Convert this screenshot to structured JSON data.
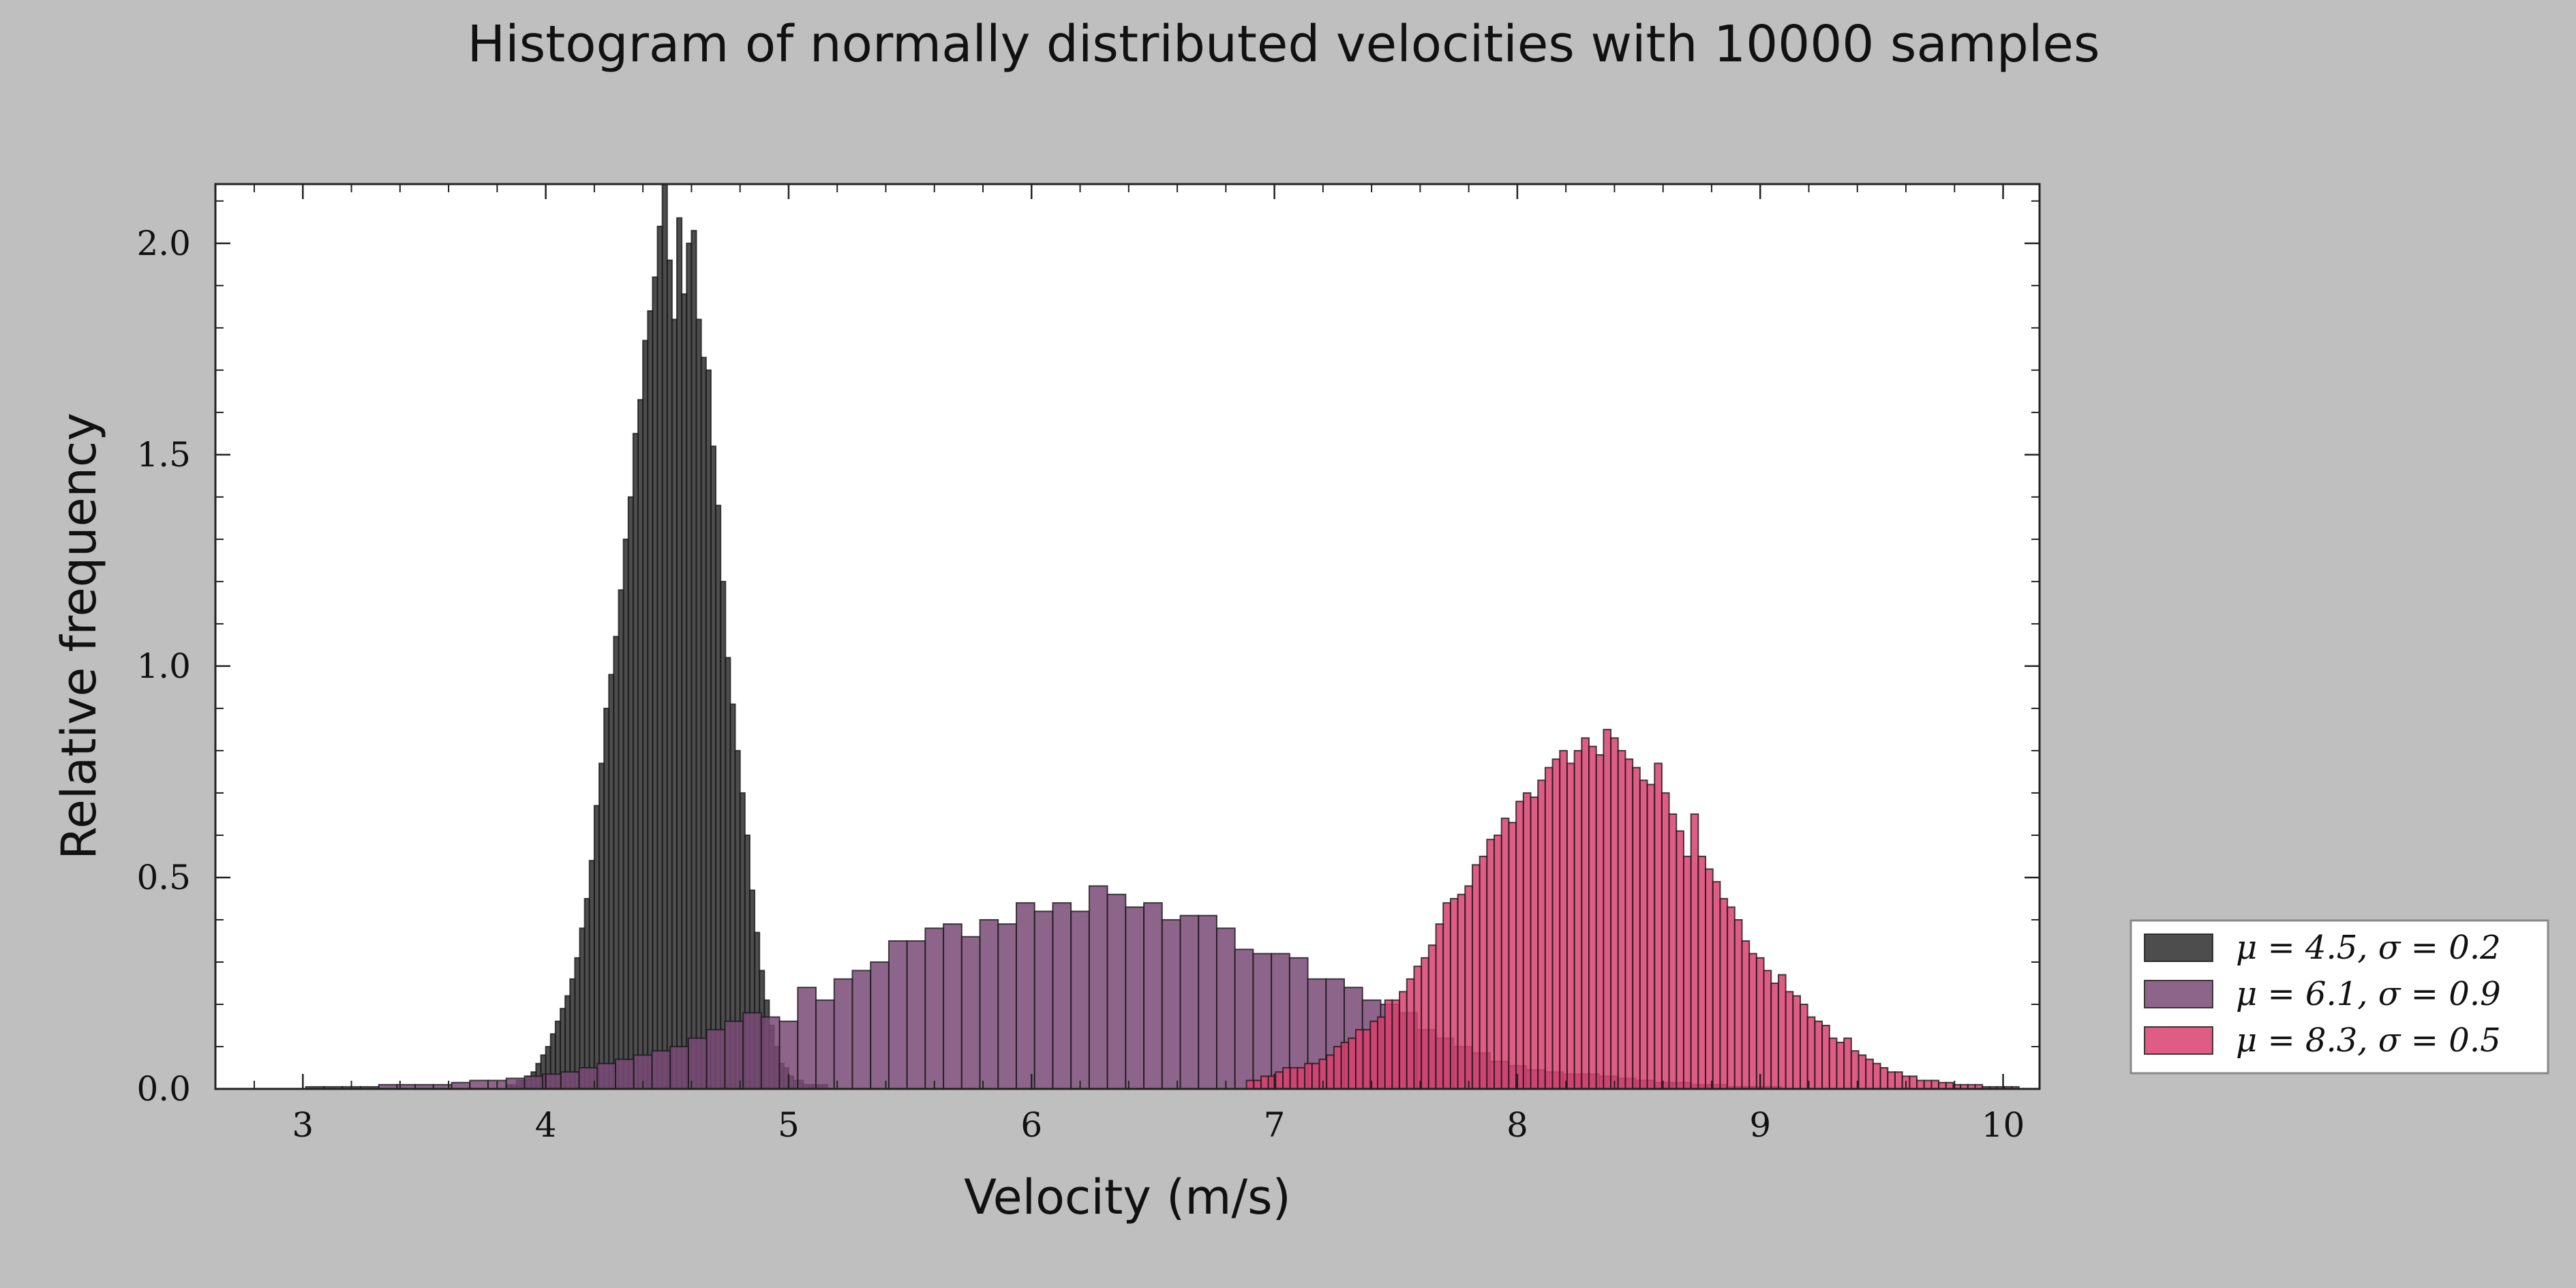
{
  "chart_data": {
    "type": "bar",
    "title": "Histogram of normally distributed velocities with 10000 samples",
    "xlabel": "Velocity (m/s)",
    "ylabel": "Relative frequency",
    "xlim": [
      2.64,
      10.15
    ],
    "ylim": [
      0,
      2.14
    ],
    "xticks": [
      3,
      4,
      5,
      6,
      7,
      8,
      9,
      10
    ],
    "yticks": [
      0.0,
      0.5,
      1.0,
      1.5,
      2.0
    ],
    "ytick_labels": [
      "0.0",
      "0.5",
      "1.0",
      "1.5",
      "2.0"
    ],
    "grid": false,
    "legend_position": "outside-lower-right",
    "series": [
      {
        "name": "μ = 4.5, σ = 0.2",
        "color": "#2e2e2e",
        "x": [
          3.85,
          3.87,
          3.89,
          3.91,
          3.93,
          3.95,
          3.97,
          3.99,
          4.01,
          4.03,
          4.05,
          4.07,
          4.09,
          4.11,
          4.13,
          4.15,
          4.17,
          4.19,
          4.21,
          4.23,
          4.25,
          4.27,
          4.29,
          4.31,
          4.33,
          4.35,
          4.37,
          4.39,
          4.41,
          4.43,
          4.45,
          4.47,
          4.49,
          4.51,
          4.53,
          4.55,
          4.57,
          4.59,
          4.61,
          4.63,
          4.65,
          4.67,
          4.69,
          4.71,
          4.73,
          4.75,
          4.77,
          4.79,
          4.81,
          4.83,
          4.85,
          4.87,
          4.89,
          4.91,
          4.93,
          4.95,
          4.97,
          4.99,
          5.01,
          5.03,
          5.05,
          5.07,
          5.09,
          5.11,
          5.13,
          5.15
        ],
        "y": [
          0.01,
          0.01,
          0.02,
          0.02,
          0.03,
          0.04,
          0.06,
          0.08,
          0.1,
          0.13,
          0.16,
          0.19,
          0.22,
          0.26,
          0.31,
          0.38,
          0.45,
          0.54,
          0.67,
          0.77,
          0.9,
          0.98,
          1.07,
          1.18,
          1.3,
          1.4,
          1.55,
          1.63,
          1.77,
          1.84,
          1.92,
          2.04,
          2.14,
          1.96,
          1.82,
          2.06,
          1.88,
          2.0,
          2.03,
          1.82,
          1.73,
          1.7,
          1.52,
          1.38,
          1.2,
          1.02,
          0.91,
          0.8,
          0.7,
          0.6,
          0.47,
          0.37,
          0.28,
          0.21,
          0.15,
          0.1,
          0.06,
          0.05,
          0.03,
          0.02,
          0.02,
          0.01,
          0.01,
          0.01,
          0.01,
          0.01
        ]
      },
      {
        "name": "μ = 6.1, σ = 0.9",
        "color": "#7a4a75",
        "x": [
          3.05,
          3.125,
          3.2,
          3.275,
          3.35,
          3.425,
          3.5,
          3.575,
          3.65,
          3.725,
          3.8,
          3.875,
          3.95,
          4.025,
          4.1,
          4.175,
          4.25,
          4.325,
          4.4,
          4.475,
          4.55,
          4.625,
          4.7,
          4.775,
          4.85,
          4.925,
          5.0,
          5.075,
          5.15,
          5.225,
          5.3,
          5.375,
          5.45,
          5.525,
          5.6,
          5.675,
          5.75,
          5.825,
          5.9,
          5.975,
          6.05,
          6.125,
          6.2,
          6.275,
          6.35,
          6.425,
          6.5,
          6.575,
          6.65,
          6.725,
          6.8,
          6.875,
          6.95,
          7.025,
          7.1,
          7.175,
          7.25,
          7.325,
          7.4,
          7.475,
          7.55,
          7.625,
          7.7,
          7.775,
          7.85,
          7.925,
          8.0,
          8.075,
          8.15,
          8.225,
          8.3,
          8.375,
          8.45,
          8.525,
          8.6,
          8.675,
          8.75,
          8.825,
          8.9,
          8.975,
          9.05
        ],
        "y": [
          0.005,
          0.005,
          0.005,
          0.005,
          0.01,
          0.01,
          0.01,
          0.01,
          0.015,
          0.02,
          0.02,
          0.025,
          0.03,
          0.035,
          0.04,
          0.05,
          0.06,
          0.07,
          0.08,
          0.09,
          0.1,
          0.12,
          0.14,
          0.16,
          0.18,
          0.17,
          0.16,
          0.24,
          0.21,
          0.26,
          0.28,
          0.3,
          0.35,
          0.35,
          0.38,
          0.39,
          0.36,
          0.4,
          0.39,
          0.44,
          0.42,
          0.44,
          0.42,
          0.48,
          0.46,
          0.43,
          0.44,
          0.4,
          0.41,
          0.41,
          0.38,
          0.33,
          0.32,
          0.32,
          0.31,
          0.26,
          0.26,
          0.24,
          0.21,
          0.2,
          0.18,
          0.14,
          0.12,
          0.1,
          0.085,
          0.065,
          0.055,
          0.045,
          0.04,
          0.035,
          0.035,
          0.03,
          0.025,
          0.02,
          0.015,
          0.015,
          0.01,
          0.01,
          0.005,
          0.005,
          0.005
        ]
      },
      {
        "name": "μ = 8.3, σ = 0.5",
        "color": "#d9406e",
        "x": [
          6.9,
          6.93,
          6.96,
          6.99,
          7.02,
          7.05,
          7.08,
          7.11,
          7.14,
          7.17,
          7.2,
          7.23,
          7.26,
          7.29,
          7.32,
          7.35,
          7.38,
          7.41,
          7.44,
          7.47,
          7.5,
          7.53,
          7.56,
          7.59,
          7.62,
          7.65,
          7.68,
          7.71,
          7.74,
          7.77,
          7.8,
          7.83,
          7.86,
          7.89,
          7.92,
          7.95,
          7.98,
          8.01,
          8.04,
          8.07,
          8.1,
          8.13,
          8.16,
          8.19,
          8.22,
          8.25,
          8.28,
          8.31,
          8.34,
          8.37,
          8.4,
          8.43,
          8.46,
          8.49,
          8.52,
          8.55,
          8.58,
          8.61,
          8.64,
          8.67,
          8.7,
          8.73,
          8.76,
          8.79,
          8.82,
          8.85,
          8.88,
          8.91,
          8.94,
          8.97,
          9.0,
          9.03,
          9.06,
          9.09,
          9.12,
          9.15,
          9.18,
          9.21,
          9.24,
          9.27,
          9.3,
          9.33,
          9.36,
          9.39,
          9.42,
          9.45,
          9.48,
          9.51,
          9.54,
          9.57,
          9.6,
          9.63,
          9.66,
          9.69,
          9.72,
          9.75,
          9.78,
          9.81,
          9.84,
          9.87,
          9.9,
          9.93,
          9.96,
          9.99,
          10.02,
          10.05
        ],
        "y": [
          0.02,
          0.02,
          0.03,
          0.03,
          0.04,
          0.05,
          0.05,
          0.05,
          0.06,
          0.06,
          0.07,
          0.08,
          0.1,
          0.11,
          0.12,
          0.14,
          0.14,
          0.16,
          0.17,
          0.21,
          0.21,
          0.23,
          0.26,
          0.29,
          0.31,
          0.34,
          0.39,
          0.44,
          0.45,
          0.46,
          0.48,
          0.53,
          0.55,
          0.59,
          0.6,
          0.64,
          0.63,
          0.68,
          0.7,
          0.69,
          0.73,
          0.76,
          0.78,
          0.8,
          0.77,
          0.8,
          0.83,
          0.81,
          0.79,
          0.85,
          0.83,
          0.8,
          0.78,
          0.76,
          0.73,
          0.72,
          0.77,
          0.7,
          0.65,
          0.61,
          0.55,
          0.65,
          0.55,
          0.52,
          0.49,
          0.45,
          0.43,
          0.4,
          0.35,
          0.32,
          0.31,
          0.28,
          0.25,
          0.27,
          0.23,
          0.22,
          0.2,
          0.17,
          0.16,
          0.15,
          0.12,
          0.11,
          0.12,
          0.09,
          0.08,
          0.07,
          0.06,
          0.05,
          0.04,
          0.04,
          0.03,
          0.03,
          0.02,
          0.02,
          0.02,
          0.015,
          0.015,
          0.01,
          0.01,
          0.01,
          0.01,
          0.005,
          0.005,
          0.005,
          0.005,
          0.005
        ]
      }
    ]
  }
}
